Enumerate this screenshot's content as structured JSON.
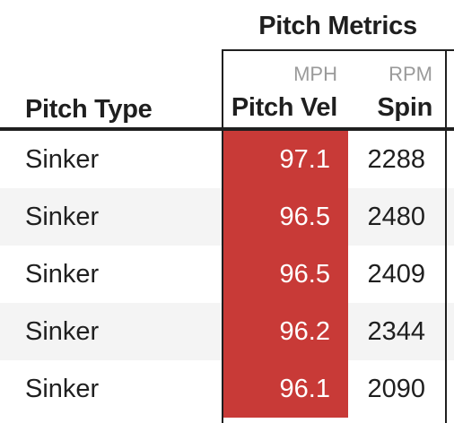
{
  "table": {
    "spanner_label": "Pitch Metrics",
    "columns": {
      "pitch_type": {
        "label": "Pitch Type",
        "unit": ""
      },
      "pitch_vel": {
        "label": "Pitch Vel",
        "unit": "MPH"
      },
      "spin": {
        "label": "Spin",
        "unit": "RPM"
      }
    },
    "highlight_color": "#c83a37",
    "rows": [
      {
        "pitch_type": "Sinker",
        "pitch_vel": "97.1",
        "spin": "2288"
      },
      {
        "pitch_type": "Sinker",
        "pitch_vel": "96.5",
        "spin": "2480"
      },
      {
        "pitch_type": "Sinker",
        "pitch_vel": "96.5",
        "spin": "2409"
      },
      {
        "pitch_type": "Sinker",
        "pitch_vel": "96.2",
        "spin": "2344"
      },
      {
        "pitch_type": "Sinker",
        "pitch_vel": "96.1",
        "spin": "2090"
      }
    ]
  }
}
